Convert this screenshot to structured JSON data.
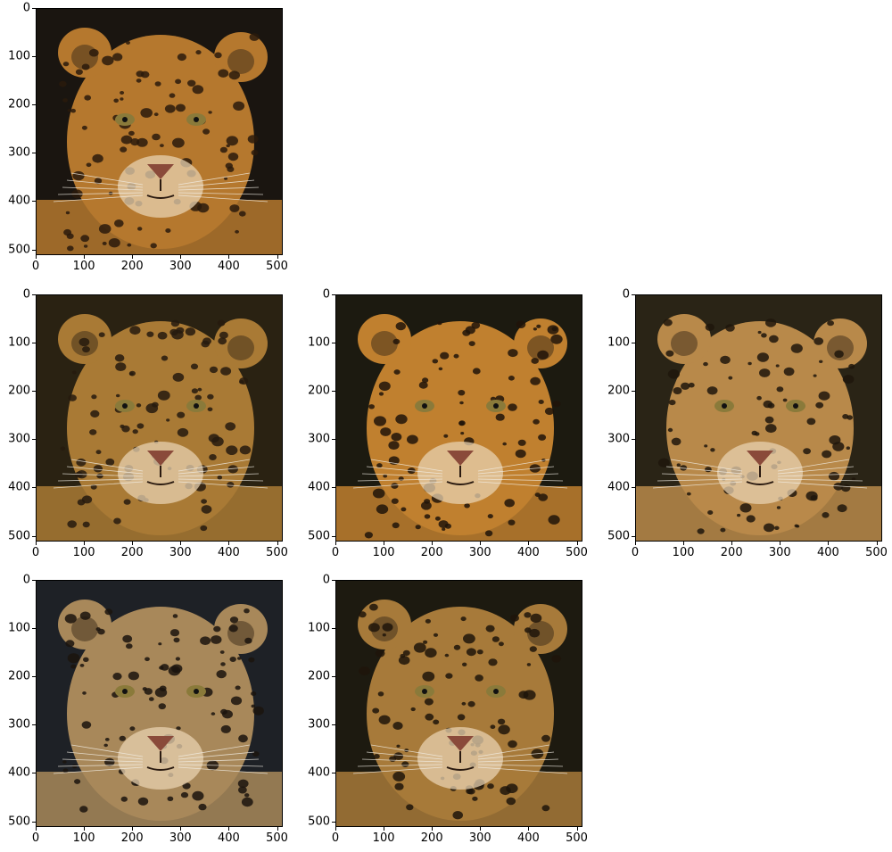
{
  "axes": {
    "x_ticks": [
      "0",
      "100",
      "200",
      "300",
      "400",
      "500"
    ],
    "y_ticks": [
      "0",
      "100",
      "200",
      "300",
      "400",
      "500"
    ],
    "xlim": [
      0,
      512
    ],
    "ylim": [
      512,
      0
    ]
  },
  "panels": [
    {
      "id": "panel-1",
      "subject": "leopard-face",
      "bg": "#1a1510",
      "fur": "#b5782e",
      "spot": "#2a1a0c"
    },
    {
      "id": "panel-2",
      "subject": "jaguar-face",
      "bg": "#2a2212",
      "fur": "#a97a35",
      "spot": "#261a0e"
    },
    {
      "id": "panel-3",
      "subject": "jaguar-face",
      "bg": "#1c1a10",
      "fur": "#c0802f",
      "spot": "#201409"
    },
    {
      "id": "panel-4",
      "subject": "jaguar-face",
      "bg": "#2a2416",
      "fur": "#b8894a",
      "spot": "#1f160c"
    },
    {
      "id": "panel-5",
      "subject": "jaguar-face",
      "bg": "#1e2126",
      "fur": "#a8885a",
      "spot": "#1b140e"
    },
    {
      "id": "panel-6",
      "subject": "jaguar-face",
      "bg": "#1d1a10",
      "fur": "#a77a3a",
      "spot": "#1f150b"
    }
  ]
}
